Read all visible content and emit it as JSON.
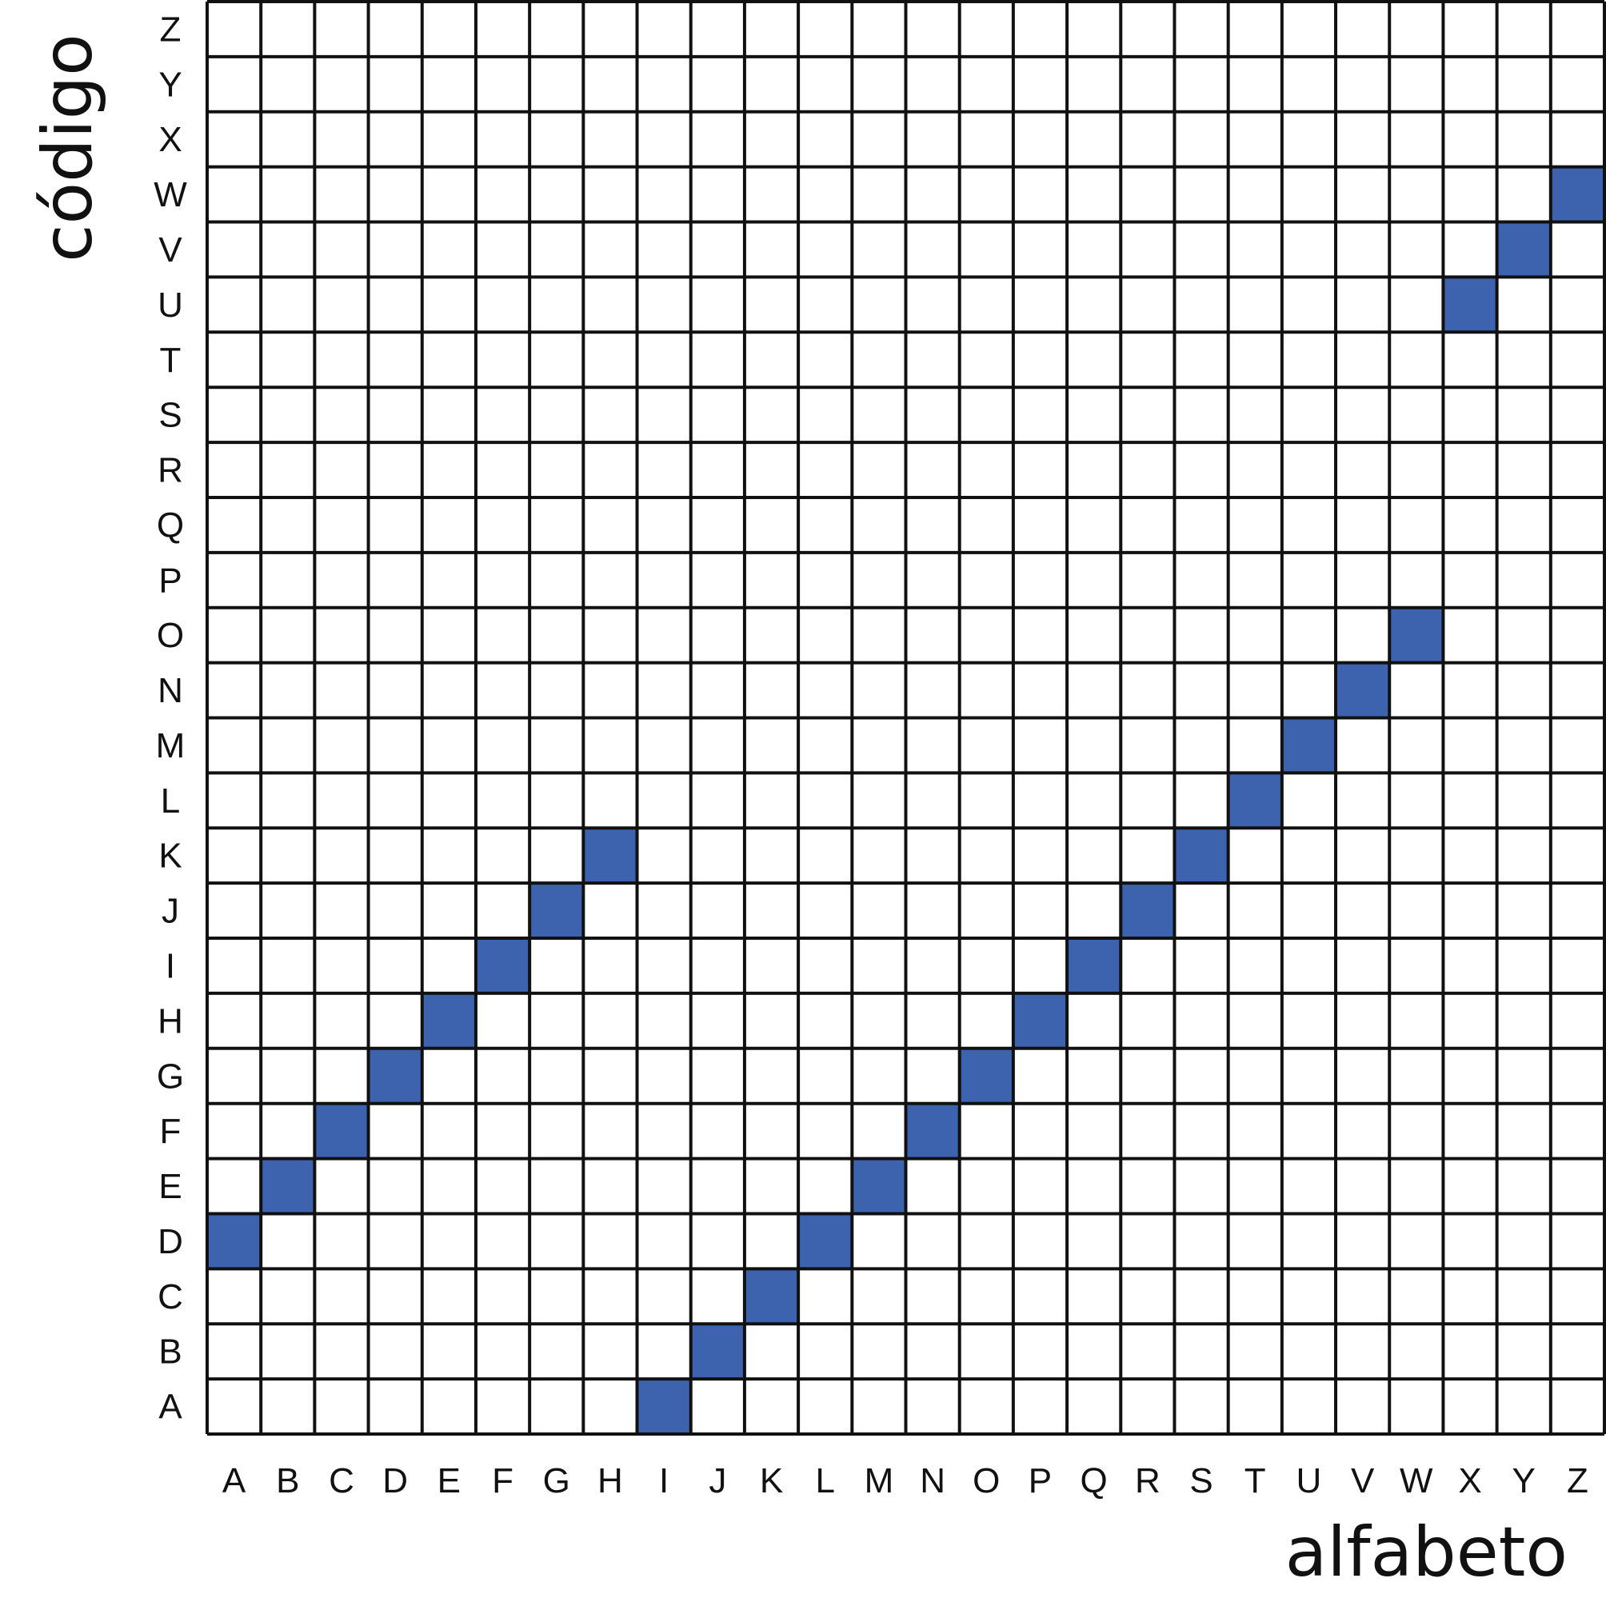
{
  "colors": {
    "cell_fill": "#3d62ae",
    "grid_line": "#111111",
    "background": "#ffffff"
  },
  "chart_data": {
    "type": "heatmap",
    "title": "",
    "xlabel": "alfabeto",
    "ylabel": "código",
    "x_categories": [
      "A",
      "B",
      "C",
      "D",
      "E",
      "F",
      "G",
      "H",
      "I",
      "J",
      "K",
      "L",
      "M",
      "N",
      "O",
      "P",
      "Q",
      "R",
      "S",
      "T",
      "U",
      "V",
      "W",
      "X",
      "Y",
      "Z"
    ],
    "y_categories": [
      "A",
      "B",
      "C",
      "D",
      "E",
      "F",
      "G",
      "H",
      "I",
      "J",
      "K",
      "L",
      "M",
      "N",
      "O",
      "P",
      "Q",
      "R",
      "S",
      "T",
      "U",
      "V",
      "W",
      "X",
      "Y",
      "Z"
    ],
    "filled_cells": [
      {
        "x": "A",
        "y": "D"
      },
      {
        "x": "B",
        "y": "E"
      },
      {
        "x": "C",
        "y": "F"
      },
      {
        "x": "D",
        "y": "G"
      },
      {
        "x": "E",
        "y": "H"
      },
      {
        "x": "F",
        "y": "I"
      },
      {
        "x": "G",
        "y": "J"
      },
      {
        "x": "H",
        "y": "K"
      },
      {
        "x": "I",
        "y": "A"
      },
      {
        "x": "J",
        "y": "B"
      },
      {
        "x": "K",
        "y": "C"
      },
      {
        "x": "L",
        "y": "D"
      },
      {
        "x": "M",
        "y": "E"
      },
      {
        "x": "N",
        "y": "F"
      },
      {
        "x": "O",
        "y": "G"
      },
      {
        "x": "P",
        "y": "H"
      },
      {
        "x": "Q",
        "y": "I"
      },
      {
        "x": "R",
        "y": "J"
      },
      {
        "x": "S",
        "y": "K"
      },
      {
        "x": "T",
        "y": "L"
      },
      {
        "x": "U",
        "y": "M"
      },
      {
        "x": "V",
        "y": "N"
      },
      {
        "x": "W",
        "y": "O"
      },
      {
        "x": "X",
        "y": "U"
      },
      {
        "x": "Y",
        "y": "V"
      },
      {
        "x": "Z",
        "y": "W"
      }
    ],
    "grid": true,
    "legend": "none"
  }
}
